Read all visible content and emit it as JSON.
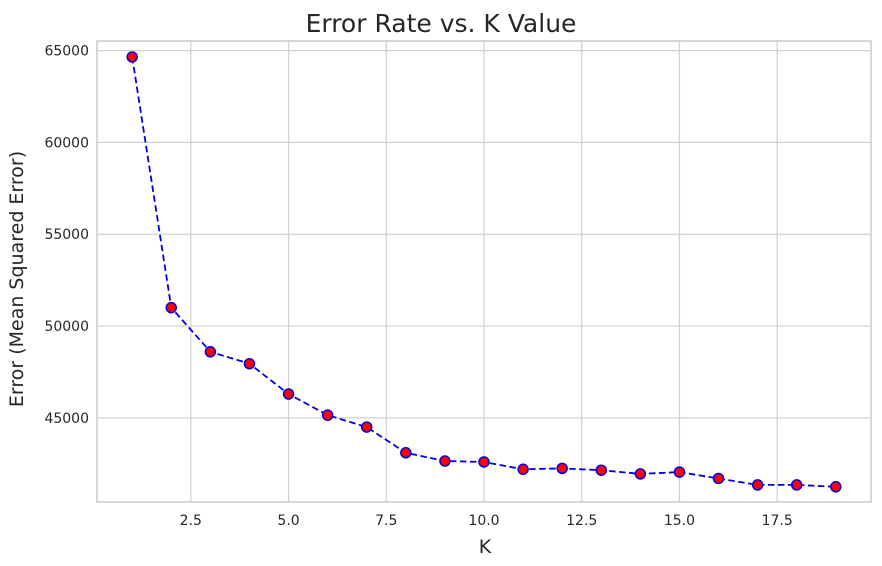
{
  "chart_data": {
    "type": "line",
    "title": "Error Rate vs. K Value",
    "xlabel": "K",
    "ylabel": "Error (Mean Squared Error)",
    "x": [
      1,
      2,
      3,
      4,
      5,
      6,
      7,
      8,
      9,
      10,
      11,
      12,
      13,
      14,
      15,
      16,
      17,
      18,
      19
    ],
    "series": [
      {
        "values": [
          64650,
          51000,
          48600,
          47950,
          46300,
          45150,
          44500,
          43100,
          42650,
          42600,
          42200,
          42250,
          42150,
          41950,
          42050,
          41700,
          41350,
          41350,
          41250
        ],
        "line_color": "#0000e0",
        "line_style": "dashed",
        "marker": "circle",
        "marker_face": "#ff0000",
        "marker_edge": "#0000e0"
      }
    ],
    "xticks": [
      2.5,
      5.0,
      7.5,
      10.0,
      12.5,
      15.0,
      17.5
    ],
    "xtick_labels": [
      "2.5",
      "5.0",
      "7.5",
      "10.0",
      "12.5",
      "15.0",
      "17.5"
    ],
    "yticks": [
      45000,
      50000,
      55000,
      60000,
      65000
    ],
    "ytick_labels": [
      "45000",
      "50000",
      "55000",
      "60000",
      "65000"
    ],
    "xlim": [
      0.1,
      19.9
    ],
    "ylim": [
      40420,
      65520
    ],
    "grid": true,
    "legend": "none"
  }
}
